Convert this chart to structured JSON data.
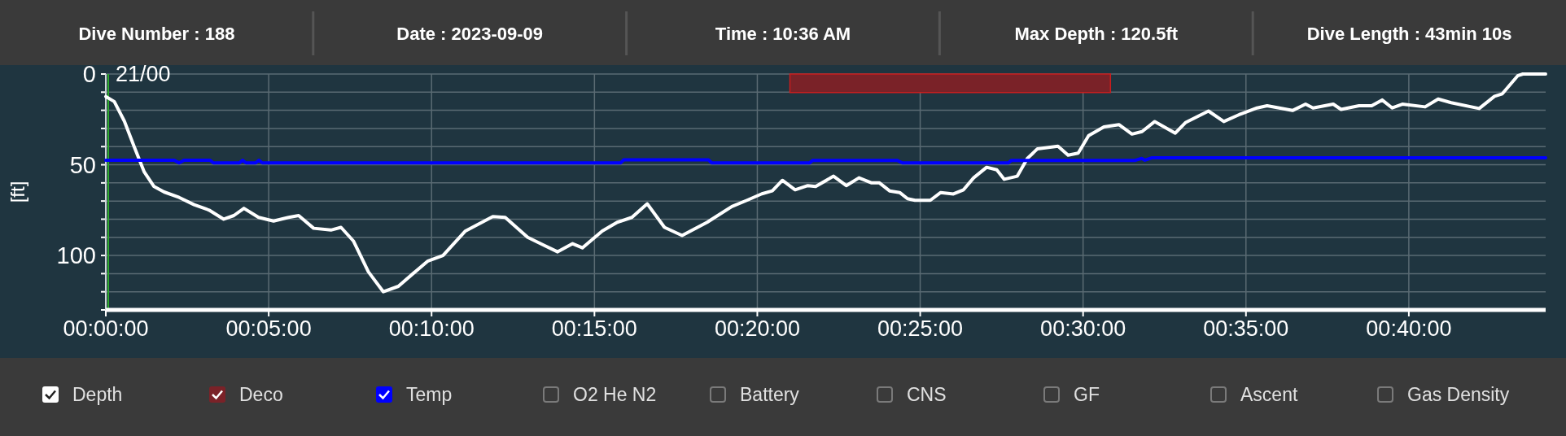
{
  "chart_data": {
    "type": "line",
    "ylabel": "[ft]",
    "xlim": [
      0,
      44.2
    ],
    "ylim": [
      130,
      0
    ],
    "xticks": [
      {
        "value": 0,
        "label": "00:00:00"
      },
      {
        "value": 5,
        "label": "00:05:00"
      },
      {
        "value": 10,
        "label": "00:10:00"
      },
      {
        "value": 15,
        "label": "00:15:00"
      },
      {
        "value": 20,
        "label": "00:20:00"
      },
      {
        "value": 25,
        "label": "00:25:00"
      },
      {
        "value": 30,
        "label": "00:30:00"
      },
      {
        "value": 35,
        "label": "00:35:00"
      },
      {
        "value": 40,
        "label": "00:40:00"
      }
    ],
    "yticks": [
      0,
      {
        "value": 10,
        "label": null
      },
      {
        "value": 20,
        "label": null
      },
      {
        "value": 30,
        "label": null
      },
      {
        "value": 40,
        "label": null
      },
      50,
      {
        "value": 60,
        "label": null
      },
      {
        "value": 70,
        "label": null
      },
      {
        "value": 80,
        "label": null
      },
      {
        "value": 90,
        "label": null
      },
      100,
      {
        "value": 110,
        "label": null
      },
      {
        "value": 120,
        "label": null
      },
      {
        "value": 130,
        "label": null
      }
    ],
    "grid": true,
    "legend": "bottom",
    "ref_lines": [
      {
        "axis": "x",
        "value": 0,
        "label": "21/00",
        "color": "#2ea82e"
      }
    ],
    "annotations": [
      "Dive Number : 188",
      "Date : 2023-09-09",
      "Time : 10:36 AM",
      "Max Depth : 120.5ft",
      "Dive Length : 43min 10s",
      "O2 He N2",
      "Battery",
      "CNS",
      "GF",
      "Ascent",
      "Gas Density"
    ],
    "series": [
      {
        "name": "Depth",
        "color": "#ffffff",
        "x": [
          0,
          0.26,
          0.57,
          0.87,
          1.18,
          1.48,
          1.79,
          2.25,
          2.71,
          3.17,
          3.62,
          3.93,
          4.24,
          4.69,
          5.15,
          5.61,
          5.92,
          6.38,
          6.91,
          7.22,
          7.6,
          8.06,
          8.52,
          8.98,
          9.43,
          9.89,
          10.35,
          11.04,
          11.88,
          12.26,
          12.95,
          13.41,
          13.87,
          14.33,
          14.63,
          15.24,
          15.7,
          16.15,
          16.62,
          17.15,
          17.69,
          18.46,
          19.22,
          19.68,
          20.14,
          20.46,
          20.77,
          21.16,
          21.55,
          21.79,
          22.34,
          22.73,
          23.12,
          23.51,
          23.75,
          24.06,
          24.37,
          24.61,
          24.84,
          25.31,
          25.63,
          26.02,
          26.33,
          26.64,
          27.04,
          27.35,
          27.58,
          27.98,
          28.29,
          28.6,
          29.23,
          29.54,
          29.85,
          30.17,
          30.64,
          31.1,
          31.5,
          31.81,
          32.2,
          32.83,
          33.14,
          33.85,
          34.32,
          34.79,
          35.34,
          35.65,
          36.43,
          36.83,
          37.06,
          37.68,
          37.92,
          38.47,
          38.86,
          39.18,
          39.49,
          39.8,
          40.5,
          40.9,
          41.3,
          42.16,
          42.63,
          42.87,
          43.34,
          43.5,
          44.2
        ],
        "values": [
          12.4,
          15.2,
          26,
          40,
          54,
          62,
          65,
          68,
          72,
          75,
          80,
          78,
          74,
          79,
          81,
          79,
          78,
          85,
          86,
          84.5,
          92,
          109,
          120,
          117,
          110,
          103,
          100,
          86.5,
          78.6,
          79,
          90,
          94,
          98,
          93.5,
          95.8,
          86.5,
          81.7,
          79,
          71.5,
          84.5,
          89,
          81.7,
          73,
          69.6,
          66,
          64.4,
          58.6,
          63.8,
          61.5,
          62,
          56.3,
          61.5,
          57.2,
          60,
          60,
          64.4,
          65.3,
          68.7,
          69.6,
          69.6,
          65.3,
          66.1,
          63.8,
          57.2,
          51.4,
          52.8,
          58,
          56.3,
          46.5,
          41.2,
          39.8,
          44.7,
          43.6,
          34,
          29.1,
          27.9,
          33.1,
          31.7,
          26.2,
          32.6,
          26.8,
          20.4,
          26.2,
          22.4,
          18.7,
          17.5,
          20.1,
          16.6,
          18.7,
          16.6,
          19.5,
          17.5,
          17.5,
          14.3,
          18.7,
          16.6,
          18.1,
          13.8,
          15.8,
          19,
          12.3,
          10.9,
          1,
          0,
          0
        ]
      },
      {
        "name": "Deco",
        "type": "area",
        "color": "#7a2228",
        "x": [
          21,
          30.84
        ],
        "values": [
          10.2,
          10.2
        ]
      },
      {
        "name": "Temp",
        "color": "#0000ff",
        "x": [
          0,
          2.1,
          2.25,
          2.4,
          3.2,
          3.3,
          4.1,
          4.2,
          4.3,
          4.6,
          4.7,
          4.8,
          15.8,
          15.9,
          18.5,
          18.6,
          21.6,
          21.7,
          24.3,
          24.45,
          27.7,
          27.8,
          31.6,
          31.8,
          31.9,
          32.1,
          44.2
        ],
        "values": [
          47.5,
          47.5,
          49,
          47.5,
          47.5,
          49,
          49,
          47.5,
          49,
          49,
          47.5,
          49,
          49,
          47.3,
          47.3,
          49,
          49,
          47.6,
          47.6,
          49,
          49,
          47.6,
          47.6,
          46.5,
          47.5,
          46.2,
          46.2
        ]
      }
    ]
  }
}
